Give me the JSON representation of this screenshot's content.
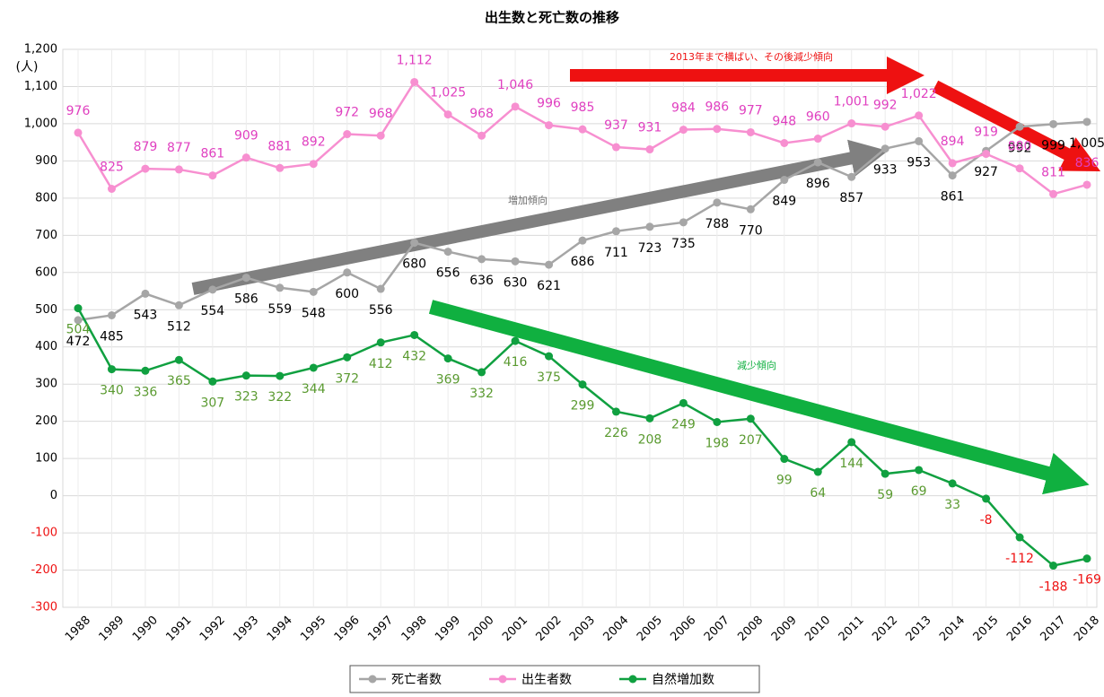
{
  "chart_data": {
    "type": "line",
    "title": "出生数と死亡数の推移",
    "y_label": "(人)",
    "categories": [
      "1988",
      "1989",
      "1990",
      "1991",
      "1992",
      "1993",
      "1994",
      "1995",
      "1996",
      "1997",
      "1998",
      "1999",
      "2000",
      "2001",
      "2002",
      "2003",
      "2004",
      "2005",
      "2006",
      "2007",
      "2008",
      "2009",
      "2010",
      "2011",
      "2012",
      "2013",
      "2014",
      "2015",
      "2016",
      "2017",
      "2018"
    ],
    "series": [
      {
        "name": "死亡者数",
        "color": "#a6a6a6",
        "label_color": "#000000",
        "label_pos": "below",
        "values": [
          472,
          485,
          543,
          512,
          554,
          586,
          559,
          548,
          600,
          556,
          680,
          656,
          636,
          630,
          621,
          686,
          711,
          723,
          735,
          788,
          770,
          849,
          896,
          857,
          933,
          953,
          861,
          927,
          992,
          999,
          1005
        ],
        "value_labels": [
          "472",
          "485",
          "543",
          "512",
          "554",
          "586",
          "559",
          "548",
          "600",
          "556",
          "680",
          "656",
          "636",
          "630",
          "621",
          "686",
          "711",
          "723",
          "735",
          "788",
          "770",
          "849",
          "896",
          "857",
          "933",
          "953",
          "861",
          "927",
          "992",
          "999",
          "1,005"
        ]
      },
      {
        "name": "出生者数",
        "color": "#f78fd0",
        "label_color": "#e040c0",
        "label_pos": "above",
        "values": [
          976,
          825,
          879,
          877,
          861,
          909,
          881,
          892,
          972,
          968,
          1112,
          1025,
          968,
          1046,
          996,
          985,
          937,
          931,
          984,
          986,
          977,
          948,
          960,
          1001,
          992,
          1022,
          894,
          919,
          880,
          811,
          836
        ],
        "value_labels": [
          "976",
          "825",
          "879",
          "877",
          "861",
          "909",
          "881",
          "892",
          "972",
          "968",
          "1,112",
          "1,025",
          "968",
          "1,046",
          "996",
          "985",
          "937",
          "931",
          "984",
          "986",
          "977",
          "948",
          "960",
          "1,001",
          "992",
          "1,022",
          "894",
          "919",
          "880",
          "811",
          "836"
        ]
      },
      {
        "name": "自然増加数",
        "color": "#10a040",
        "label_color": "#5a9a30",
        "label_pos": "below",
        "values": [
          504,
          340,
          336,
          365,
          307,
          323,
          322,
          344,
          372,
          412,
          432,
          369,
          332,
          416,
          375,
          299,
          226,
          208,
          249,
          198,
          207,
          99,
          64,
          144,
          59,
          69,
          33,
          -8,
          -112,
          -188,
          -169
        ]
      }
    ],
    "ylim": [
      -300,
      1200
    ],
    "yticks": [
      -300,
      -200,
      -100,
      0,
      100,
      200,
      300,
      400,
      500,
      600,
      700,
      800,
      900,
      {
        "value": 1000,
        "label": "1,000"
      },
      {
        "value": 1100,
        "label": "1,100"
      },
      {
        "value": 1200,
        "label": "1,200"
      }
    ],
    "grid": true,
    "legend": "bottom",
    "annotations": [
      "2013年まで横ばい、その後減少傾向",
      "増加傾向",
      "減少傾向"
    ]
  }
}
